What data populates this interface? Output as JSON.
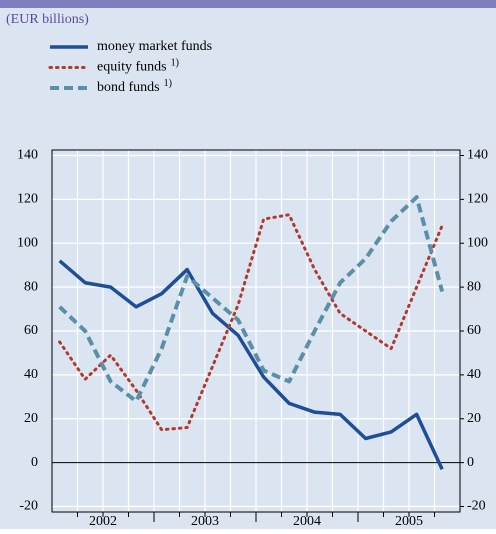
{
  "chart_data": {
    "type": "line",
    "unit_label": "(EUR billions)",
    "categories": [
      null,
      null,
      null,
      null,
      null,
      null,
      null,
      null,
      null,
      null,
      null,
      null,
      null,
      null,
      null,
      null
    ],
    "year_labels": [
      "2002",
      "2003",
      "2004",
      "2005"
    ],
    "series": [
      {
        "name": "money market funds",
        "color": "#1f4e96",
        "style": "solid",
        "values": [
          92,
          82,
          80,
          71,
          77,
          88,
          68,
          58,
          39,
          27,
          23,
          22,
          11,
          14,
          22,
          -3
        ]
      },
      {
        "name": "equity funds",
        "note": "1)",
        "color": "#b03a2e",
        "style": "dotted",
        "values": [
          55,
          38,
          49,
          33,
          15,
          16,
          44,
          72,
          111,
          113,
          88,
          68,
          60,
          52,
          80,
          108
        ]
      },
      {
        "name": "bond funds",
        "note": "1)",
        "color": "#5b8fa8",
        "style": "dashed",
        "values": [
          71,
          60,
          37,
          28,
          52,
          85,
          75,
          65,
          42,
          37,
          60,
          82,
          93,
          110,
          121,
          78
        ]
      }
    ],
    "ylim": [
      -22.5,
      142.5
    ],
    "yticks": [
      -20,
      0,
      20,
      40,
      60,
      80,
      100,
      120,
      140
    ],
    "y2lim": [
      -22.5,
      142.5
    ],
    "y2ticks": [
      -20,
      0,
      20,
      40,
      60,
      80,
      100,
      120,
      140
    ],
    "grid": true
  }
}
